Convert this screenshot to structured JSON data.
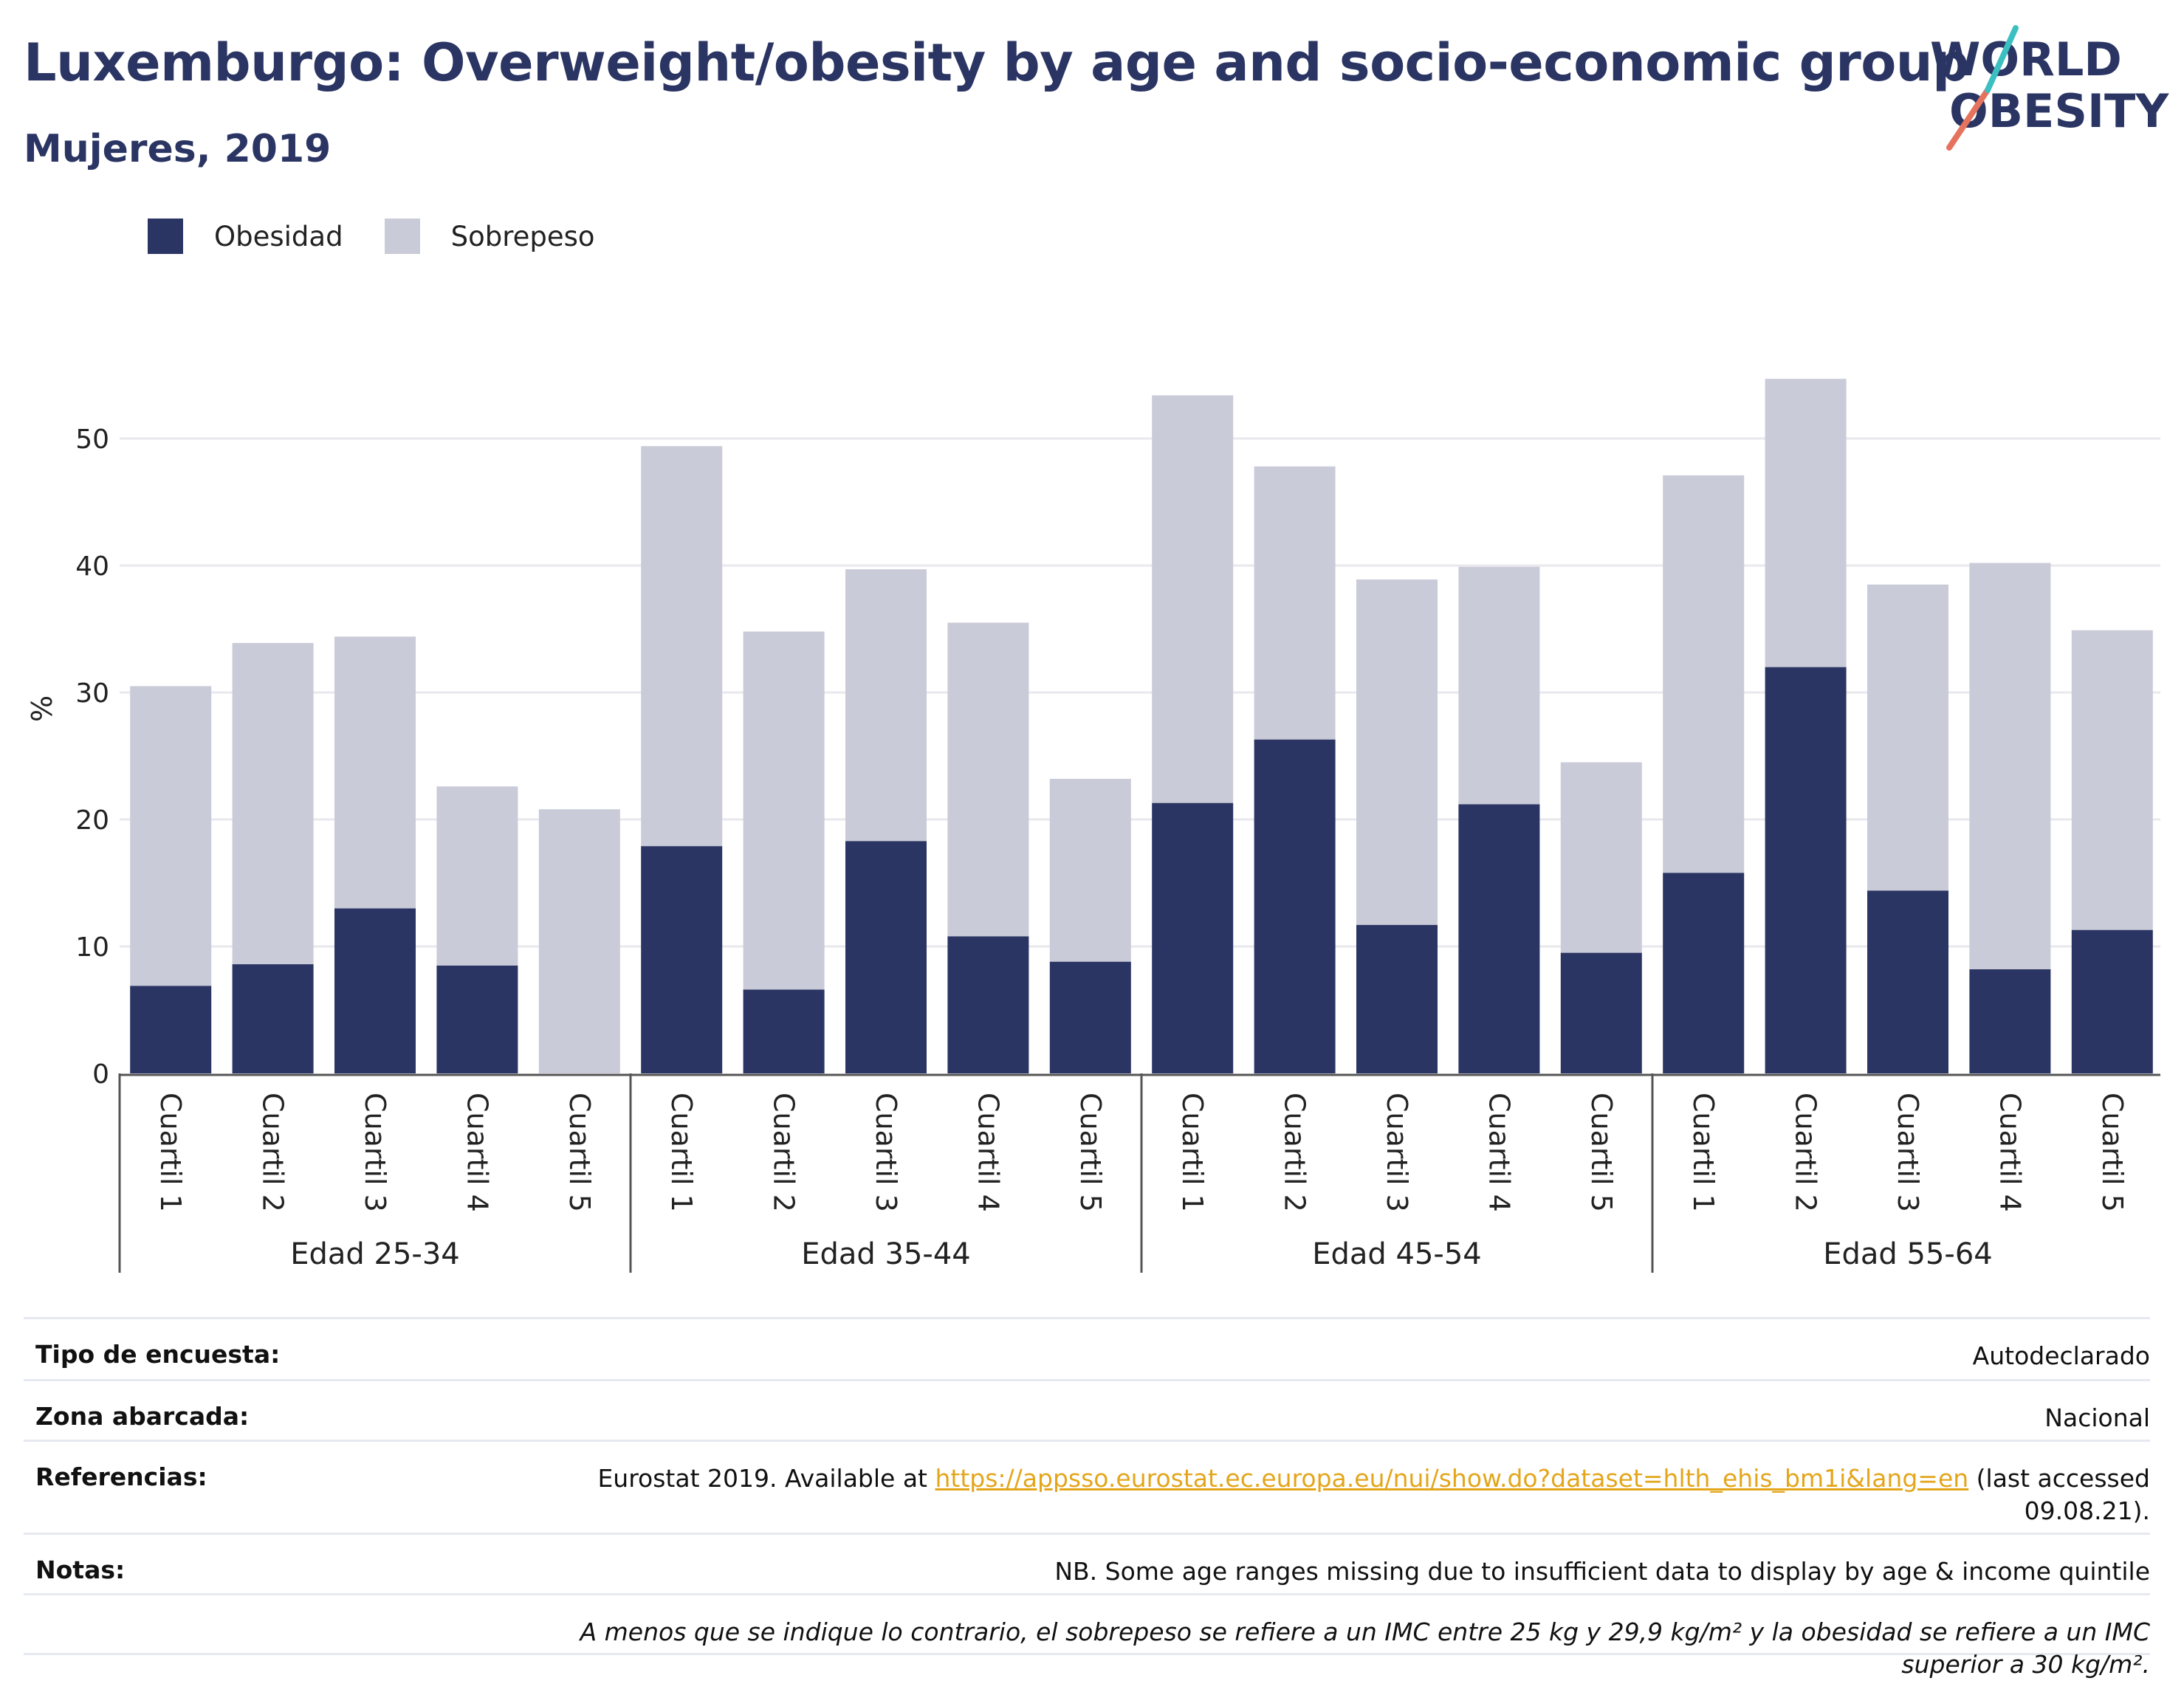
{
  "title": "Luxemburgo: Overweight/obesity by age and socio-economic group",
  "subtitle": "Mujeres, 2019",
  "logo": {
    "line1": "WORLD",
    "line2": "OBESITY"
  },
  "legend": [
    {
      "label": "Obesidad",
      "color": "#2b3563"
    },
    {
      "label": "Sobrepeso",
      "color": "#cacbd8"
    }
  ],
  "chart_data": {
    "type": "bar",
    "stacked": true,
    "ylabel": "%",
    "xlabel": "",
    "ylim": [
      0,
      56
    ],
    "yticks": [
      0,
      10,
      20,
      30,
      40,
      50
    ],
    "grid": true,
    "legend_position": "top-left",
    "groups": [
      {
        "label": "Edad 25-34",
        "categories": [
          "Cuartil 1",
          "Cuartil 2",
          "Cuartil 3",
          "Cuartil 4",
          "Cuartil 5"
        ]
      },
      {
        "label": "Edad 35-44",
        "categories": [
          "Cuartil 1",
          "Cuartil 2",
          "Cuartil 3",
          "Cuartil 4",
          "Cuartil 5"
        ]
      },
      {
        "label": "Edad 45-54",
        "categories": [
          "Cuartil 1",
          "Cuartil 2",
          "Cuartil 3",
          "Cuartil 4",
          "Cuartil 5"
        ]
      },
      {
        "label": "Edad 55-64",
        "categories": [
          "Cuartil 1",
          "Cuartil 2",
          "Cuartil 3",
          "Cuartil 4",
          "Cuartil 5"
        ]
      }
    ],
    "series": [
      {
        "name": "Obesidad",
        "color": "#2b3563",
        "values": [
          6.9,
          8.6,
          13.0,
          8.5,
          0.0,
          17.9,
          6.6,
          18.3,
          10.8,
          8.8,
          21.3,
          26.3,
          11.7,
          21.2,
          9.5,
          15.8,
          32.0,
          14.4,
          8.2,
          11.3
        ]
      },
      {
        "name": "Sobrepeso",
        "color": "#cacbd8",
        "values": [
          23.6,
          25.3,
          21.4,
          14.1,
          20.8,
          31.5,
          28.2,
          21.4,
          24.7,
          14.4,
          32.1,
          21.5,
          27.2,
          18.7,
          15.0,
          31.3,
          22.7,
          24.1,
          32.0,
          23.6
        ]
      }
    ]
  },
  "info": {
    "survey": {
      "label": "Tipo de encuesta:",
      "value": "Autodeclarado"
    },
    "area": {
      "label": "Zona abarcada:",
      "value": "Nacional"
    },
    "refs": {
      "label": "Referencias:",
      "prefix": "Eurostat 2019. Available at ",
      "link": "https://appsso.eurostat.ec.europa.eu/nui/show.do?dataset=hlth_ehis_bm1i&lang=en",
      "suffix": " (last accessed 09.08.21)."
    },
    "notes": {
      "label": "Notas:",
      "value": "NB. Some age ranges missing due to insufficient data to display by age & income quintile"
    },
    "footnote": "A menos que se indique lo contrario, el sobrepeso se refiere a un IMC entre 25 kg y 29,9 kg/m² y la obesidad se refiere a un IMC superior a 30 kg/m²."
  }
}
